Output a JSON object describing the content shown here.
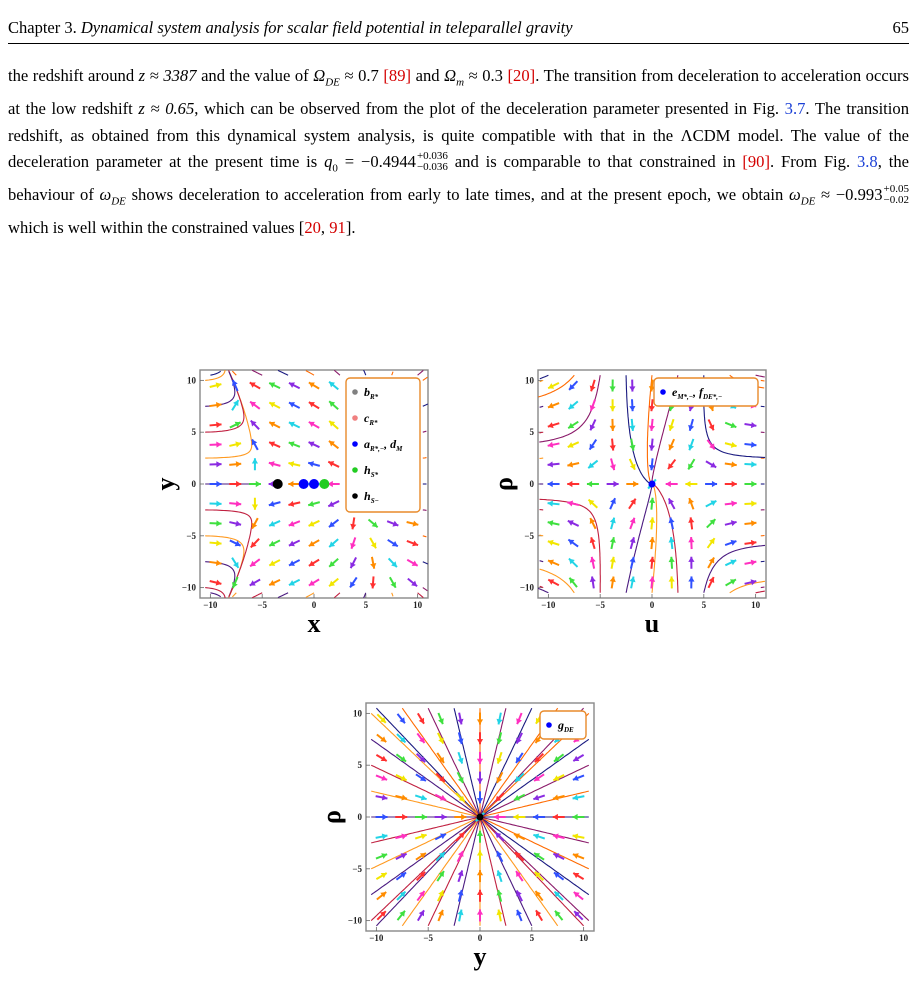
{
  "header": {
    "chapter": "Chapter 3.",
    "title": "Dynamical system analysis for scalar field potential in teleparallel gravity",
    "page": "65"
  },
  "paragraph": {
    "s1": "the redshift around",
    "z1": "z ≈ 3387",
    "s2": "and the value of",
    "omde": "Ω",
    "omde_sub": "DE",
    "omde_val": "≈ 0.7",
    "r89": "[89]",
    "s3": "and",
    "omm": "Ω",
    "omm_sub": "m",
    "omm_val": "≈ 0.3",
    "r20a": "[20]",
    "s4": ". The transition from deceleration to acceleration occurs at the low redshift",
    "z2": "z ≈ 0.65",
    "s5": ", which can be observed from the plot of the deceleration parameter presented in Fig.",
    "f37": "3.7",
    "s6": ". The transition redshift, as obtained from this dynamical system analysis, is quite compatible with that in the ΛCDM model. The value of the deceleration parameter at the present time is",
    "q0": "q",
    "q0_sub": "0",
    "q0_val": "= −0.4944",
    "q0_sup": "+0.036",
    "q0_low": "−0.036",
    "s7": "and is comparable to that constrained in",
    "r90": "[90]",
    "s8": ". From Fig.",
    "f38": "3.8",
    "s9": ", the behaviour of",
    "wde": "ω",
    "wde_sub": "DE",
    "s10": "shows deceleration to acceleration from early to late times, and at the present epoch, we obtain",
    "wde2": "ω",
    "wde2_sub": "DE",
    "wde_val": "≈ −0.993",
    "w_sup": "+0.05",
    "w_low": "−0.02",
    "s11": "which is well within the constrained values",
    "r_open": "[",
    "r20b": "20",
    "r_comma": ", ",
    "r91": "91",
    "r_close": "]."
  },
  "plots": [
    {
      "xlabel": "x",
      "ylabel": "y",
      "ticks": [
        "−10",
        "−5",
        "0",
        "5",
        "10"
      ],
      "legend": [
        {
          "color": "#808080",
          "text": "b",
          "sub": "R*"
        },
        {
          "color": "#f08080",
          "text": "c",
          "sub": "R*"
        },
        {
          "color": "#0000ff",
          "text": "a",
          "sub": "R*,−",
          "tail": ", d",
          "tail_sub": "M"
        },
        {
          "color": "#22cc22",
          "text": "h",
          "sub": "S*"
        },
        {
          "color": "#000000",
          "text": "h",
          "sub": "S−"
        }
      ]
    },
    {
      "xlabel": "u",
      "ylabel": "ρ",
      "ticks": [
        "−10",
        "−5",
        "0",
        "5",
        "10"
      ],
      "legend": [
        {
          "color": "#0000ff",
          "text": "e",
          "sub": "M*,−",
          "tail": ", f",
          "tail_sub": "DE*,−"
        }
      ]
    },
    {
      "xlabel": "y",
      "ylabel": "ρ",
      "ticks": [
        "−10",
        "−5",
        "0",
        "5",
        "10"
      ],
      "legend": [
        {
          "color": "#0000ff",
          "text": "g",
          "sub": "DE"
        }
      ]
    }
  ],
  "arrow_colors": [
    "#ff3030",
    "#ff8c00",
    "#f2e600",
    "#3fe03f",
    "#22d4e6",
    "#3050ff",
    "#8a2be2",
    "#ff30c0"
  ],
  "stream_colors": [
    "#1a1a80",
    "#4a1a80",
    "#8a1a6a",
    "#c02040",
    "#ff6a00",
    "#ff9a20"
  ]
}
